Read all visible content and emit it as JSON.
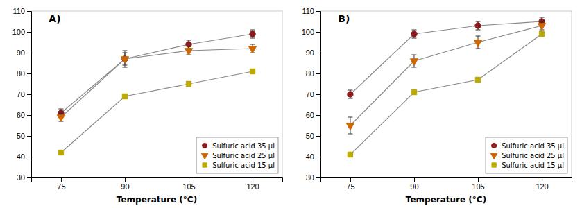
{
  "chart_data": [
    {
      "type": "line",
      "title": "A)",
      "xlabel": "Temperature (°C)",
      "x": [
        75,
        90,
        105,
        120
      ],
      "xlim": [
        68,
        127
      ],
      "xticks": [
        75,
        90,
        105,
        120
      ],
      "ylim": [
        30,
        110
      ],
      "yticks": [
        30,
        40,
        50,
        60,
        70,
        80,
        90,
        100,
        110
      ],
      "color": "#888888",
      "grid": false,
      "legend": "lower right",
      "series": [
        {
          "name": "Sulfuric acid 35 μl",
          "color": "#8B1A1A",
          "marker": "circle",
          "values": [
            61,
            87,
            94,
            99
          ],
          "errors": [
            2,
            3,
            2,
            2
          ]
        },
        {
          "name": "Sulfuric acid 25 μl",
          "color": "#CC6600",
          "marker": "triangle-down",
          "values": [
            59,
            87,
            91,
            92
          ],
          "errors": [
            2,
            4,
            2,
            2
          ]
        },
        {
          "name": "Sulfuric acid 15 μl",
          "color": "#BBAA00",
          "marker": "square",
          "values": [
            42,
            69,
            75,
            81
          ],
          "errors": [
            1,
            1,
            1,
            1
          ]
        }
      ]
    },
    {
      "type": "line",
      "title": "B)",
      "xlabel": "Temperature (°C)",
      "x": [
        75,
        90,
        105,
        120
      ],
      "xlim": [
        68,
        127
      ],
      "xticks": [
        75,
        90,
        105,
        120
      ],
      "ylim": [
        30,
        110
      ],
      "yticks": [
        30,
        40,
        50,
        60,
        70,
        80,
        90,
        100,
        110
      ],
      "color": "#888888",
      "grid": false,
      "legend": "lower right",
      "series": [
        {
          "name": "Sulfuric acid 35 μl",
          "color": "#8B1A1A",
          "marker": "circle",
          "values": [
            70,
            99,
            103,
            105
          ],
          "errors": [
            2,
            2,
            2,
            2
          ]
        },
        {
          "name": "Sulfuric acid 25 μl",
          "color": "#CC6600",
          "marker": "triangle-down",
          "values": [
            55,
            86,
            95,
            103
          ],
          "errors": [
            4,
            3,
            3,
            2
          ]
        },
        {
          "name": "Sulfuric acid 15 μl",
          "color": "#BBAA00",
          "marker": "square",
          "values": [
            41,
            71,
            77,
            99
          ],
          "errors": [
            1,
            1,
            1,
            1
          ]
        }
      ]
    }
  ]
}
